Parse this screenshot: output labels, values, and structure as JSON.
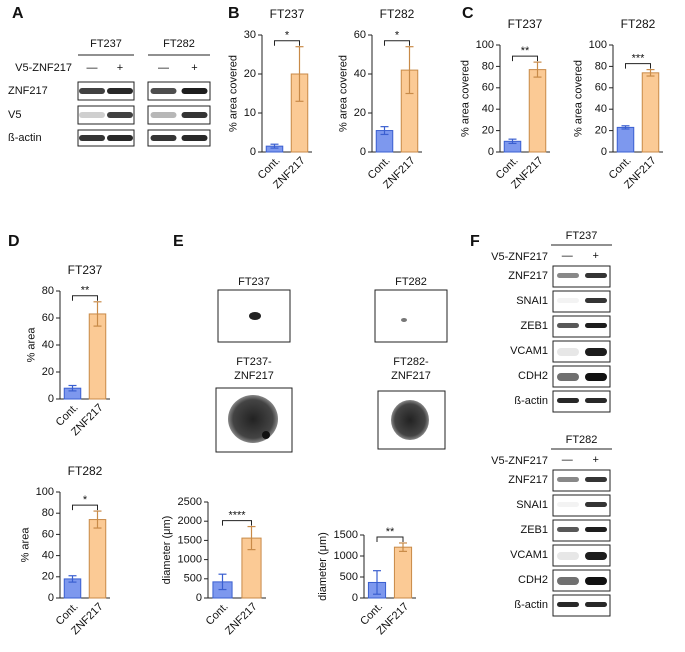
{
  "panel_labels": [
    "A",
    "B",
    "C",
    "D",
    "E",
    "F"
  ],
  "blot_A": {
    "treatment": "V5-ZNF217",
    "blocks": [
      {
        "cell_line": "FT237",
        "lanes": [
          "—",
          "+"
        ]
      },
      {
        "cell_line": "FT282",
        "lanes": [
          "—",
          "+"
        ]
      }
    ],
    "rows": [
      "ZNF217",
      "V5",
      "ß-actin"
    ]
  },
  "images_E": [
    [
      "FT237"
    ],
    [
      "FT282"
    ],
    [
      "FT237-",
      "ZNF217"
    ],
    [
      "FT282-",
      "ZNF217"
    ]
  ],
  "blot_F": [
    {
      "cell_line": "FT237",
      "treatment": "V5-ZNF217",
      "lanes": [
        "—",
        "+"
      ],
      "rows": [
        "ZNF217",
        "SNAI1",
        "ZEB1",
        "VCAM1",
        "CDH2",
        "ß-actin"
      ]
    },
    {
      "cell_line": "FT282",
      "treatment": "V5-ZNF217",
      "lanes": [
        "—",
        "+"
      ],
      "rows": [
        "ZNF217",
        "SNAI1",
        "ZEB1",
        "VCAM1",
        "CDH2",
        "ß-actin"
      ]
    }
  ],
  "chart_data": [
    {
      "type": "bar",
      "title": "FT237",
      "y_label": "% area covered",
      "categories": [
        "Cont.",
        "ZNF217"
      ],
      "values": [
        1.5,
        20
      ],
      "errors": [
        0.5,
        7
      ],
      "colors": [
        "#7d98ee",
        "#fbca95"
      ],
      "ylim": [
        0,
        30
      ],
      "yticks": [
        0,
        10,
        20,
        30
      ],
      "significance": "*"
    },
    {
      "type": "bar",
      "title": "FT282",
      "y_label": "% area covered",
      "categories": [
        "Cont.",
        "ZNF217"
      ],
      "values": [
        11,
        42
      ],
      "errors": [
        2,
        12
      ],
      "colors": [
        "#7d98ee",
        "#fbca95"
      ],
      "ylim": [
        0,
        60
      ],
      "yticks": [
        0,
        20,
        40,
        60
      ],
      "significance": "*"
    },
    {
      "type": "bar",
      "title": "FT237",
      "y_label": "% area covered",
      "categories": [
        "Cont.",
        "ZNF217"
      ],
      "values": [
        10,
        77
      ],
      "errors": [
        2,
        7
      ],
      "colors": [
        "#7d98ee",
        "#fbca95"
      ],
      "ylim": [
        0,
        100
      ],
      "yticks": [
        0,
        20,
        40,
        60,
        80,
        100
      ],
      "significance": "**"
    },
    {
      "type": "bar",
      "title": "FT282",
      "y_label": "% area covered",
      "categories": [
        "Cont.",
        "ZNF217"
      ],
      "values": [
        23,
        74
      ],
      "errors": [
        1.5,
        3
      ],
      "colors": [
        "#7d98ee",
        "#fbca95"
      ],
      "ylim": [
        0,
        100
      ],
      "yticks": [
        0,
        20,
        40,
        60,
        80,
        100
      ],
      "significance": "***"
    },
    {
      "type": "bar",
      "title": "FT237",
      "y_label": "% area",
      "categories": [
        "Cont.",
        "ZNF217"
      ],
      "values": [
        8,
        63
      ],
      "errors": [
        2,
        9
      ],
      "colors": [
        "#7d98ee",
        "#fbca95"
      ],
      "ylim": [
        0,
        80
      ],
      "yticks": [
        0,
        20,
        40,
        60,
        80
      ],
      "significance": "**"
    },
    {
      "type": "bar",
      "title": "FT282",
      "y_label": "% area",
      "categories": [
        "Cont.",
        "ZNF217"
      ],
      "values": [
        18,
        74
      ],
      "errors": [
        3,
        8
      ],
      "colors": [
        "#7d98ee",
        "#fbca95"
      ],
      "ylim": [
        0,
        100
      ],
      "yticks": [
        0,
        20,
        40,
        60,
        80,
        100
      ],
      "significance": "*"
    },
    {
      "type": "bar",
      "y_label": "diameter (μm)",
      "categories": [
        "Cont.",
        "ZNF217"
      ],
      "values": [
        420,
        1560
      ],
      "errors": [
        200,
        300
      ],
      "colors": [
        "#7d98ee",
        "#fbca95"
      ],
      "ylim": [
        0,
        2500
      ],
      "yticks": [
        0,
        500,
        1000,
        1500,
        2000,
        2500
      ],
      "significance": "****"
    },
    {
      "type": "bar",
      "y_label": "diameter (μm)",
      "categories": [
        "Cont.",
        "ZNF217"
      ],
      "values": [
        370,
        1210
      ],
      "errors": [
        280,
        100
      ],
      "colors": [
        "#7d98ee",
        "#fbca95"
      ],
      "ylim": [
        0,
        1500
      ],
      "yticks": [
        0,
        500,
        1000,
        1500
      ],
      "significance": "**"
    }
  ]
}
